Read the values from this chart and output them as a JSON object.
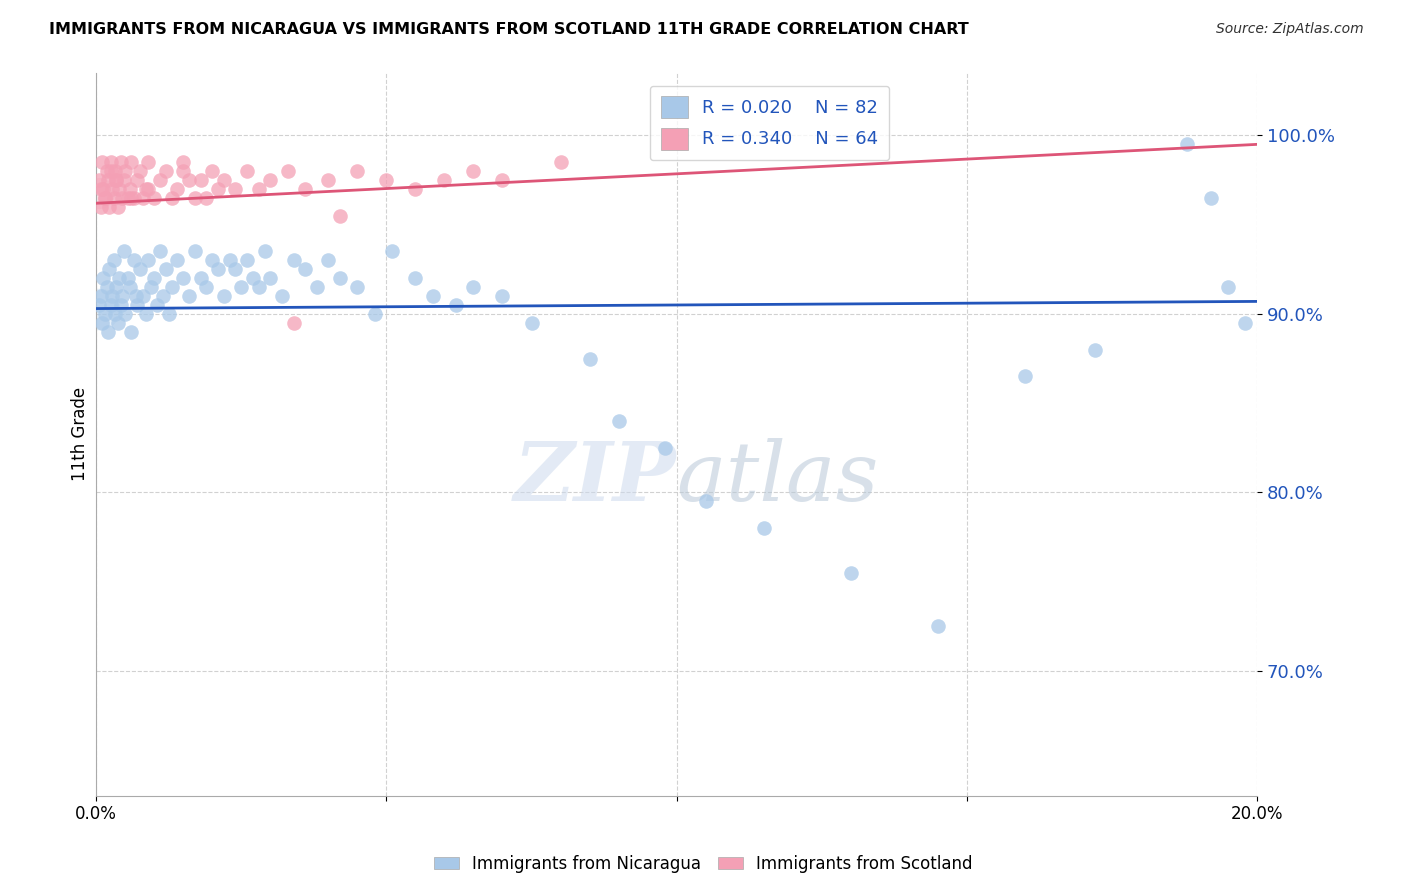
{
  "title": "IMMIGRANTS FROM NICARAGUA VS IMMIGRANTS FROM SCOTLAND 11TH GRADE CORRELATION CHART",
  "source": "Source: ZipAtlas.com",
  "ylabel": "11th Grade",
  "yaxis_ticks": [
    70.0,
    80.0,
    90.0,
    100.0
  ],
  "xlim": [
    0.0,
    20.0
  ],
  "ylim": [
    63.0,
    103.5
  ],
  "blue_color": "#a8c8e8",
  "pink_color": "#f4a0b5",
  "blue_line_color": "#2255bb",
  "pink_line_color": "#dd5577",
  "blue_scatter_x": [
    0.05,
    0.08,
    0.1,
    0.12,
    0.15,
    0.18,
    0.2,
    0.22,
    0.25,
    0.28,
    0.3,
    0.33,
    0.35,
    0.38,
    0.4,
    0.42,
    0.45,
    0.48,
    0.5,
    0.55,
    0.58,
    0.6,
    0.65,
    0.68,
    0.7,
    0.75,
    0.8,
    0.85,
    0.9,
    0.95,
    1.0,
    1.05,
    1.1,
    1.15,
    1.2,
    1.25,
    1.3,
    1.4,
    1.5,
    1.6,
    1.7,
    1.8,
    1.9,
    2.0,
    2.1,
    2.2,
    2.3,
    2.4,
    2.5,
    2.6,
    2.7,
    2.8,
    2.9,
    3.0,
    3.2,
    3.4,
    3.6,
    3.8,
    4.0,
    4.2,
    4.5,
    4.8,
    5.1,
    5.5,
    5.8,
    6.2,
    6.5,
    7.0,
    7.5,
    8.5,
    9.0,
    9.8,
    10.5,
    11.5,
    13.0,
    14.5,
    16.0,
    17.2,
    18.8,
    19.5,
    19.8,
    19.2
  ],
  "blue_scatter_y": [
    90.5,
    91.0,
    89.5,
    92.0,
    90.0,
    91.5,
    89.0,
    92.5,
    90.5,
    91.0,
    93.0,
    90.0,
    91.5,
    89.5,
    92.0,
    90.5,
    91.0,
    93.5,
    90.0,
    92.0,
    91.5,
    89.0,
    93.0,
    91.0,
    90.5,
    92.5,
    91.0,
    90.0,
    93.0,
    91.5,
    92.0,
    90.5,
    93.5,
    91.0,
    92.5,
    90.0,
    91.5,
    93.0,
    92.0,
    91.0,
    93.5,
    92.0,
    91.5,
    93.0,
    92.5,
    91.0,
    93.0,
    92.5,
    91.5,
    93.0,
    92.0,
    91.5,
    93.5,
    92.0,
    91.0,
    93.0,
    92.5,
    91.5,
    93.0,
    92.0,
    91.5,
    90.0,
    93.5,
    92.0,
    91.0,
    90.5,
    91.5,
    91.0,
    89.5,
    87.5,
    84.0,
    82.5,
    79.5,
    78.0,
    75.5,
    72.5,
    86.5,
    88.0,
    99.5,
    91.5,
    89.5,
    96.5
  ],
  "pink_scatter_x": [
    0.05,
    0.08,
    0.1,
    0.12,
    0.15,
    0.18,
    0.2,
    0.22,
    0.25,
    0.28,
    0.3,
    0.33,
    0.35,
    0.38,
    0.4,
    0.42,
    0.45,
    0.48,
    0.5,
    0.55,
    0.58,
    0.6,
    0.65,
    0.7,
    0.75,
    0.8,
    0.85,
    0.9,
    1.0,
    1.1,
    1.2,
    1.3,
    1.4,
    1.5,
    1.6,
    1.7,
    1.8,
    1.9,
    2.0,
    2.2,
    2.4,
    2.6,
    2.8,
    3.0,
    3.3,
    3.6,
    4.0,
    4.5,
    5.0,
    5.5,
    6.0,
    6.5,
    7.0,
    8.0,
    3.4,
    4.2,
    2.1,
    1.5,
    0.9,
    0.6,
    0.35,
    0.25,
    0.15,
    0.08
  ],
  "pink_scatter_y": [
    97.5,
    96.0,
    98.5,
    97.0,
    96.5,
    98.0,
    97.5,
    96.0,
    98.5,
    97.0,
    96.5,
    98.0,
    97.5,
    96.0,
    97.0,
    98.5,
    96.5,
    97.5,
    98.0,
    96.5,
    97.0,
    98.5,
    96.5,
    97.5,
    98.0,
    96.5,
    97.0,
    98.5,
    96.5,
    97.5,
    98.0,
    96.5,
    97.0,
    98.0,
    97.5,
    96.5,
    97.5,
    96.5,
    98.0,
    97.5,
    97.0,
    98.0,
    97.0,
    97.5,
    98.0,
    97.0,
    97.5,
    98.0,
    97.5,
    97.0,
    97.5,
    98.0,
    97.5,
    98.5,
    89.5,
    95.5,
    97.0,
    98.5,
    97.0,
    96.5,
    97.5,
    98.0,
    96.5,
    97.0
  ],
  "blue_trend_x": [
    0.0,
    20.0
  ],
  "blue_trend_y": [
    90.3,
    90.7
  ],
  "pink_trend_x": [
    0.0,
    20.0
  ],
  "pink_trend_y": [
    96.2,
    99.5
  ],
  "big_blue_dot_x": 0.04,
  "big_blue_dot_y": 90.3,
  "big_pink_dot_x": 0.04,
  "big_pink_dot_y": 96.8
}
